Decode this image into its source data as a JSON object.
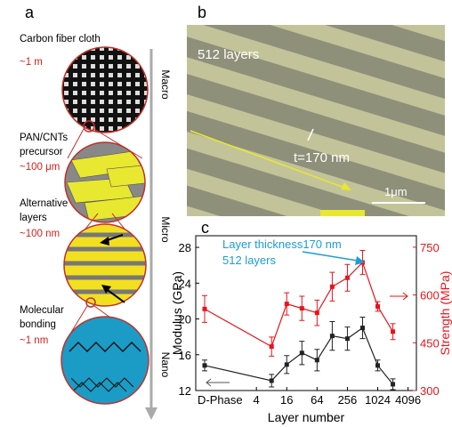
{
  "panel_a": {
    "label": "a",
    "levels": [
      {
        "name": [
          "Carbon fiber cloth"
        ],
        "size": "~1 m"
      },
      {
        "name": [
          "PAN/CNTs",
          "precursor"
        ],
        "size": "~100 μm"
      },
      {
        "name": [
          "Alternative",
          "layers"
        ],
        "size": "~100 nm"
      },
      {
        "name": [
          "Molecular",
          "bonding"
        ],
        "size": "~1 nm"
      }
    ],
    "scale": [
      "Macro",
      "Micro",
      "Nano"
    ]
  },
  "panel_b": {
    "label": "b",
    "caption": "512 layers",
    "thickness": "t=170 nm",
    "scale_bar": "1μm"
  },
  "chart_data": {
    "type": "line",
    "panel_label": "c",
    "xlabel": "Layer number",
    "ylabel": "Modulus (GPa)",
    "y2label": "Strength (MPa)",
    "annotation": [
      "Layer thickness170 nm",
      "512 layers"
    ],
    "x": [
      "D-Phase",
      8,
      16,
      32,
      64,
      128,
      256,
      512,
      1024,
      2048
    ],
    "xlog": true,
    "xlim": [
      0.25,
      6000
    ],
    "xticks": [
      4,
      16,
      64,
      256,
      1024,
      4096
    ],
    "ylim": [
      12,
      29.3
    ],
    "yticks": [
      12,
      16,
      20,
      24,
      28
    ],
    "y2lim": [
      300,
      786
    ],
    "y2ticks": [
      300,
      450,
      600,
      750
    ],
    "series": [
      {
        "color": "#222222",
        "values": [
          14.8,
          13.1,
          14.9,
          16.2,
          15.4,
          18.1,
          17.8,
          19.0,
          14.8,
          12.7
        ],
        "errors": [
          0.6,
          0.7,
          1.0,
          1.3,
          1.2,
          1.6,
          1.3,
          1.2,
          0.6,
          0.6
        ]
      },
      {
        "color": "#e8141c",
        "axis": "y2",
        "values": [
          556,
          438,
          572,
          558,
          544,
          626,
          654,
          702,
          564,
          485
        ],
        "errors": [
          42,
          30,
          35,
          38,
          40,
          45,
          42,
          38,
          15,
          25
        ]
      }
    ]
  }
}
